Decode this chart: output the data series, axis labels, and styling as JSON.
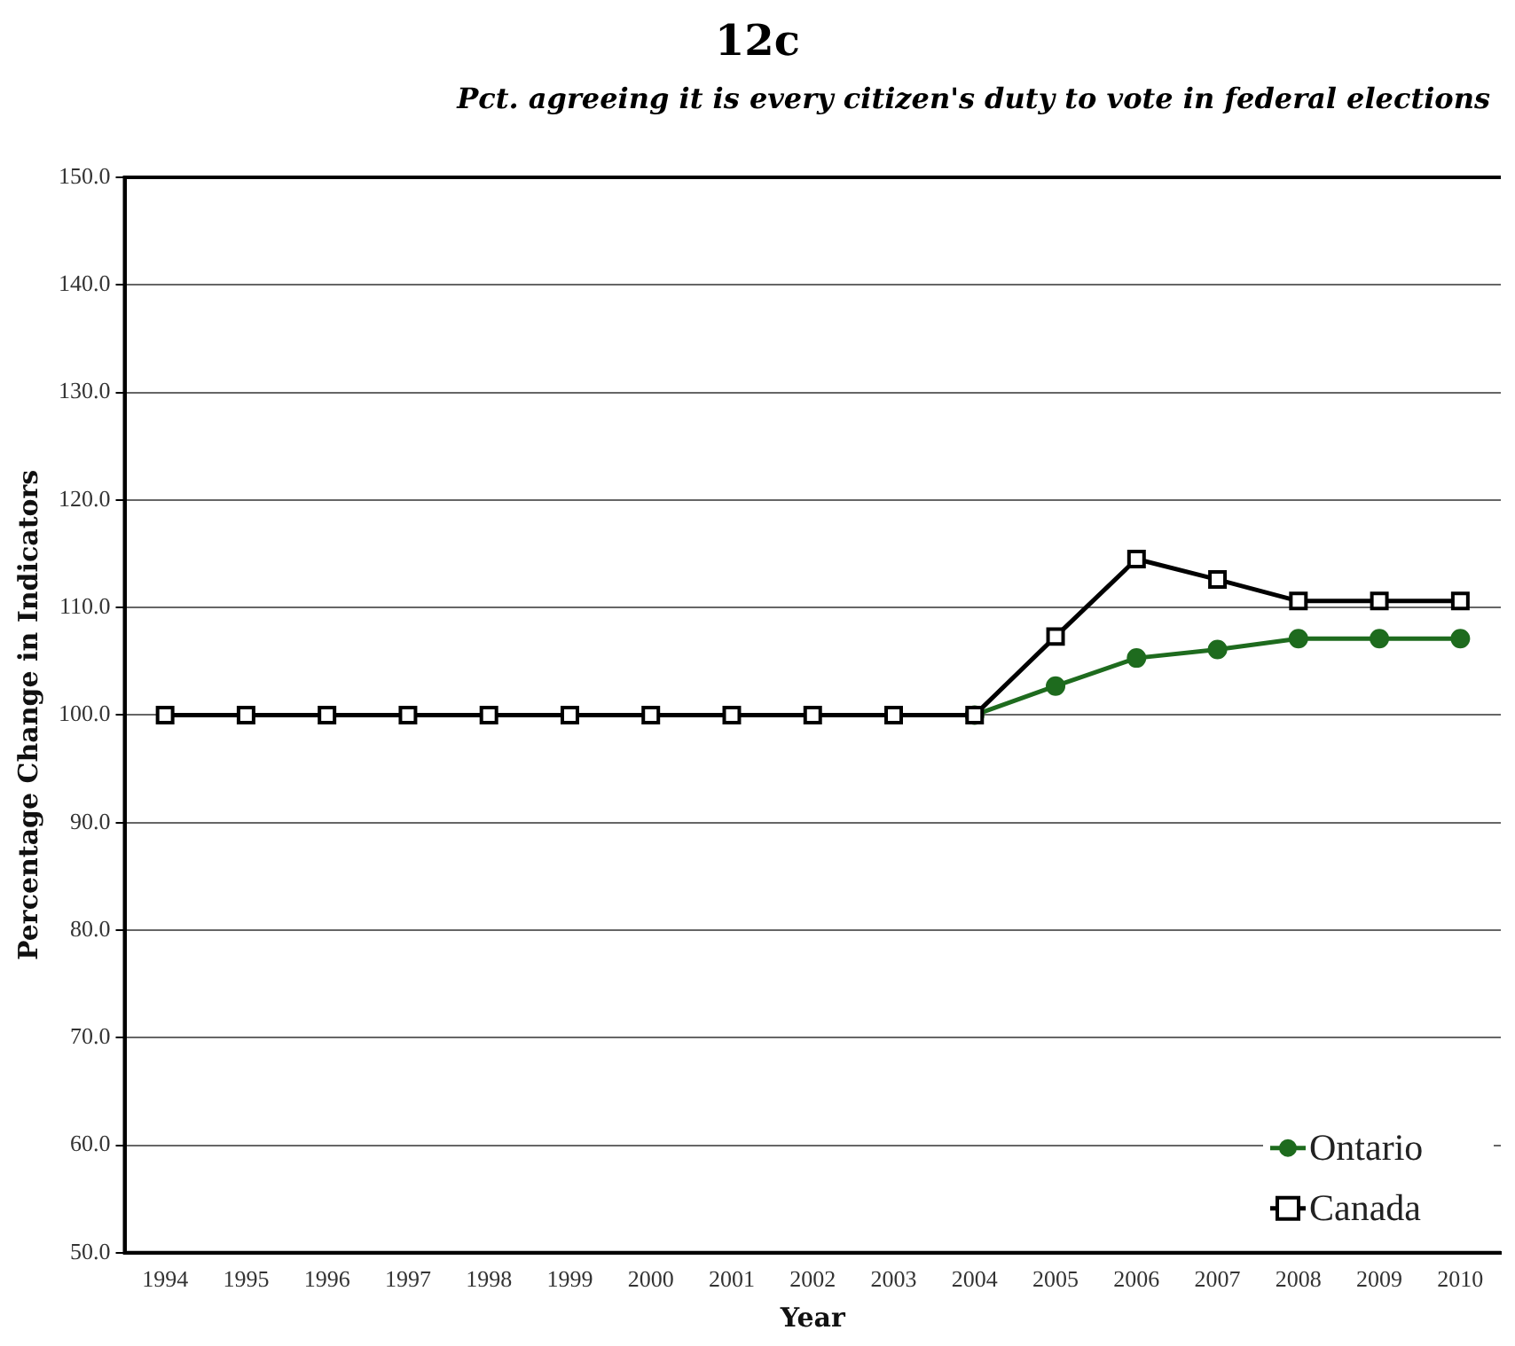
{
  "chart_data": {
    "type": "line",
    "title": "12c",
    "subtitle": "Pct. agreeing it is every citizen's duty to vote in federal elections",
    "xlabel": "Year",
    "ylabel": "Percentage Change in Indicators",
    "categories": [
      "1994",
      "1995",
      "1996",
      "1997",
      "1998",
      "1999",
      "2000",
      "2001",
      "2002",
      "2003",
      "2004",
      "2005",
      "2006",
      "2007",
      "2008",
      "2009",
      "2010"
    ],
    "series": [
      {
        "name": "Ontario",
        "color": "#1e6b1e",
        "marker": "circle",
        "values": [
          null,
          null,
          null,
          null,
          null,
          null,
          null,
          null,
          null,
          null,
          100,
          102.7,
          105.3,
          106.1,
          107.1,
          107.1,
          107.1
        ]
      },
      {
        "name": "Canada",
        "color": "#000000",
        "marker": "square",
        "values": [
          100,
          100,
          100,
          100,
          100,
          100,
          100,
          100,
          100,
          100,
          100,
          107.3,
          114.5,
          112.6,
          110.6,
          110.6,
          110.6
        ]
      }
    ],
    "ylim": [
      50,
      150
    ],
    "yticks": [
      {
        "value": 50,
        "label": "50.0"
      },
      {
        "value": 60,
        "label": "60.0"
      },
      {
        "value": 70,
        "label": "70.0"
      },
      {
        "value": 80,
        "label": "80.0"
      },
      {
        "value": 90,
        "label": "90.0"
      },
      {
        "value": 100,
        "label": "100.0"
      },
      {
        "value": 110,
        "label": "110.0"
      },
      {
        "value": 120,
        "label": "120.0"
      },
      {
        "value": 130,
        "label": "130.0"
      },
      {
        "value": 140,
        "label": "140.0"
      },
      {
        "value": 150,
        "label": "150.0"
      }
    ],
    "grid": "y",
    "legend": "bottom right",
    "line_style": "solid"
  }
}
